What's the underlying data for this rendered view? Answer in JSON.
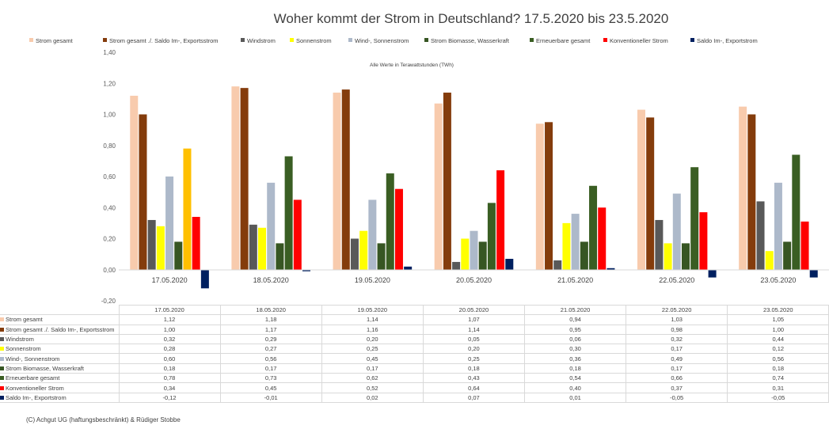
{
  "chart_data": {
    "type": "bar",
    "title": "Woher kommt der Strom in Deutschland? 17.5.2020 bis 23.5.2020",
    "annotation": "Alle Werte in Terawattstunden (TWh)",
    "categories": [
      "17.05.2020",
      "18.05.2020",
      "19.05.2020",
      "20.05.2020",
      "21.05.2020",
      "22.05.2020",
      "23.05.2020"
    ],
    "ylim": [
      -0.2,
      1.4
    ],
    "yticks": [
      "-0,20",
      "0,00",
      "0,20",
      "0,40",
      "0,60",
      "0,80",
      "1,00",
      "1,20",
      "1,40"
    ],
    "yticks_values": [
      -0.2,
      0,
      0.2,
      0.4,
      0.6,
      0.8,
      1.0,
      1.2,
      1.4
    ],
    "grid": false,
    "legend_position": "top",
    "series": [
      {
        "name": "Strom gesamt",
        "color": "#f8cbad",
        "values": [
          1.12,
          1.18,
          1.14,
          1.07,
          0.94,
          1.03,
          1.05
        ],
        "labels": [
          "1,12",
          "1,18",
          "1,14",
          "1,07",
          "0,94",
          "1,03",
          "1,05"
        ]
      },
      {
        "name": "Strom gesamt ./. Saldo Im-, Exportsstrom",
        "color": "#843c0c",
        "values": [
          1.0,
          1.17,
          1.16,
          1.14,
          0.95,
          0.98,
          1.0
        ],
        "labels": [
          "1,00",
          "1,17",
          "1,16",
          "1,14",
          "0,95",
          "0,98",
          "1,00"
        ]
      },
      {
        "name": "Windstrom",
        "color": "#595959",
        "values": [
          0.32,
          0.29,
          0.2,
          0.05,
          0.06,
          0.32,
          0.44
        ],
        "labels": [
          "0,32",
          "0,29",
          "0,20",
          "0,05",
          "0,06",
          "0,32",
          "0,44"
        ]
      },
      {
        "name": "Sonnenstrom",
        "color": "#ffff00",
        "values": [
          0.28,
          0.27,
          0.25,
          0.2,
          0.3,
          0.17,
          0.12
        ],
        "labels": [
          "0,28",
          "0,27",
          "0,25",
          "0,20",
          "0,30",
          "0,17",
          "0,12"
        ]
      },
      {
        "name": "Wind-, Sonnenstrom",
        "color": "#adb9ca",
        "values": [
          0.6,
          0.56,
          0.45,
          0.25,
          0.36,
          0.49,
          0.56
        ],
        "labels": [
          "0,60",
          "0,56",
          "0,45",
          "0,25",
          "0,36",
          "0,49",
          "0,56"
        ]
      },
      {
        "name": "Strom Biomasse, Wasserkraft",
        "color": "#375623",
        "values": [
          0.18,
          0.17,
          0.17,
          0.18,
          0.18,
          0.17,
          0.18
        ],
        "labels": [
          "0,18",
          "0,17",
          "0,17",
          "0,18",
          "0,18",
          "0,17",
          "0,18"
        ]
      },
      {
        "name": "Erneuerbare gesamt",
        "color": "#3a5e23",
        "values": [
          0.78,
          0.73,
          0.62,
          0.43,
          0.54,
          0.66,
          0.74
        ],
        "labels": [
          "0,78",
          "0,73",
          "0,62",
          "0,43",
          "0,54",
          "0,66",
          "0,74"
        ]
      },
      {
        "name": "Konventioneller Strom",
        "color": "#ff0000",
        "values": [
          0.34,
          0.45,
          0.52,
          0.64,
          0.4,
          0.37,
          0.31
        ],
        "labels": [
          "0,34",
          "0,45",
          "0,52",
          "0,64",
          "0,40",
          "0,37",
          "0,31"
        ]
      },
      {
        "name": "Saldo Im-, Exportstrom",
        "color": "#002060",
        "values": [
          -0.12,
          -0.01,
          0.02,
          0.07,
          0.01,
          -0.05,
          -0.05
        ],
        "labels": [
          "-0,12",
          "-0,01",
          "0,02",
          "0,07",
          "0,01",
          "-0,05",
          "-0,05"
        ]
      }
    ],
    "highlight_bar": {
      "series_index": 6,
      "category_index": 0,
      "color": "#ffc000"
    }
  },
  "footer": {
    "copyright": "(C) Achgut UG (haftungsbeschränkt) & Rüdiger Stobbe"
  }
}
